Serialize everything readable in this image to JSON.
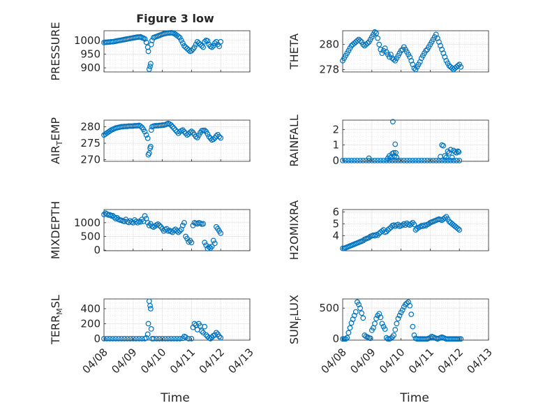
{
  "figure": {
    "title": "Figure 3 low",
    "xlabel_left": "Time",
    "xlabel_right": "Time",
    "x_ticks": [
      "04/08",
      "04/09",
      "04/10",
      "04/11",
      "04/12",
      "04/13"
    ],
    "marker_color": "#0072BD",
    "grid_color": "#e6e6e6",
    "axis_color": "#262626"
  },
  "chart_data": [
    {
      "type": "scatter",
      "ylabel": "PRESSURE",
      "xlim": [
        0,
        5
      ],
      "ylim": [
        885,
        1035
      ],
      "yticks": [
        900,
        950,
        1000
      ],
      "x": [
        0.0,
        0.05,
        0.1,
        0.15,
        0.2,
        0.25,
        0.3,
        0.35,
        0.4,
        0.45,
        0.5,
        0.55,
        0.6,
        0.65,
        0.7,
        0.75,
        0.8,
        0.85,
        0.9,
        0.95,
        1.0,
        1.05,
        1.1,
        1.15,
        1.2,
        1.25,
        1.3,
        1.35,
        1.4,
        1.45,
        1.5,
        1.52,
        1.55,
        1.58,
        1.6,
        1.62,
        1.65,
        1.7,
        1.75,
        1.8,
        1.85,
        1.9,
        1.95,
        2.0,
        2.05,
        2.1,
        2.15,
        2.2,
        2.25,
        2.3,
        2.35,
        2.4,
        2.45,
        2.5,
        2.55,
        2.6,
        2.65,
        2.7,
        2.75,
        2.8,
        2.85,
        2.9,
        2.95,
        3.0,
        3.05,
        3.1,
        3.15,
        3.2,
        3.25,
        3.3,
        3.35,
        3.4,
        3.45,
        3.5,
        3.55,
        3.6,
        3.65,
        3.7,
        3.75,
        3.8,
        3.85,
        3.9,
        3.95,
        4.0
      ],
      "y": [
        992,
        993,
        993,
        994,
        994,
        995,
        995,
        996,
        997,
        998,
        999,
        1000,
        1001,
        1002,
        1003,
        1004,
        1005,
        1006,
        1007,
        1008,
        1009,
        1010,
        1011,
        1012,
        1012,
        1013,
        1010,
        1008,
        1005,
        993,
        975,
        960,
        895,
        905,
        915,
        985,
        1000,
        1010,
        1012,
        1014,
        1016,
        1018,
        1020,
        1022,
        1024,
        1025,
        1026,
        1027,
        1027,
        1028,
        1027,
        1025,
        1022,
        1018,
        1014,
        1010,
        1000,
        990,
        980,
        975,
        970,
        965,
        960,
        962,
        968,
        975,
        985,
        995,
        990,
        985,
        980,
        975,
        995,
        1000,
        998,
        985,
        978,
        975,
        980,
        990,
        995,
        985,
        978,
        995
      ]
    },
    {
      "type": "scatter",
      "ylabel": "THETA",
      "xlim": [
        0,
        5
      ],
      "ylim": [
        277.8,
        281.1
      ],
      "yticks": [
        278,
        280
      ],
      "x": [
        0.0,
        0.05,
        0.1,
        0.15,
        0.2,
        0.25,
        0.3,
        0.35,
        0.4,
        0.45,
        0.5,
        0.55,
        0.6,
        0.65,
        0.7,
        0.75,
        0.8,
        0.85,
        0.9,
        0.95,
        1.0,
        1.05,
        1.1,
        1.15,
        1.2,
        1.25,
        1.3,
        1.35,
        1.4,
        1.45,
        1.5,
        1.55,
        1.6,
        1.65,
        1.7,
        1.75,
        1.8,
        1.85,
        1.9,
        1.95,
        2.0,
        2.05,
        2.1,
        2.15,
        2.2,
        2.25,
        2.3,
        2.35,
        2.4,
        2.45,
        2.5,
        2.55,
        2.6,
        2.65,
        2.7,
        2.75,
        2.8,
        2.85,
        2.9,
        2.95,
        3.0,
        3.05,
        3.1,
        3.15,
        3.2,
        3.25,
        3.3,
        3.35,
        3.4,
        3.45,
        3.5,
        3.55,
        3.6,
        3.65,
        3.7,
        3.75,
        3.8,
        3.85,
        3.9,
        3.95,
        4.0,
        4.05
      ],
      "y": [
        278.7,
        278.9,
        279.1,
        279.3,
        279.5,
        279.7,
        279.9,
        280.0,
        280.1,
        280.2,
        280.3,
        280.4,
        280.3,
        280.2,
        280.0,
        279.9,
        280.0,
        280.1,
        280.2,
        280.4,
        280.6,
        280.8,
        281.0,
        280.9,
        280.5,
        280.0,
        279.6,
        279.3,
        279.5,
        279.7,
        279.4,
        279.2,
        279.0,
        279.2,
        278.9,
        278.8,
        278.7,
        278.9,
        279.1,
        279.3,
        279.5,
        279.6,
        279.8,
        279.6,
        279.4,
        279.2,
        279.0,
        278.7,
        278.4,
        278.1,
        278.0,
        278.2,
        278.4,
        278.6,
        278.9,
        279.1,
        279.3,
        279.5,
        279.6,
        279.8,
        280.0,
        280.2,
        280.4,
        280.6,
        280.8,
        280.5,
        280.2,
        279.9,
        279.6,
        279.3,
        279.0,
        278.7,
        278.5,
        278.3,
        278.2,
        278.1,
        278.0,
        278.1,
        278.2,
        278.3,
        278.4,
        278.2
      ]
    },
    {
      "type": "scatter",
      "ylabel": "AIR_TEMP",
      "xlim": [
        0,
        5
      ],
      "ylim": [
        269.5,
        282
      ],
      "yticks": [
        270,
        275,
        280
      ],
      "x": [
        0.0,
        0.05,
        0.1,
        0.15,
        0.2,
        0.25,
        0.3,
        0.35,
        0.4,
        0.45,
        0.5,
        0.55,
        0.6,
        0.65,
        0.7,
        0.75,
        0.8,
        0.85,
        0.9,
        0.95,
        1.0,
        1.05,
        1.1,
        1.15,
        1.2,
        1.25,
        1.3,
        1.35,
        1.4,
        1.45,
        1.5,
        1.52,
        1.55,
        1.58,
        1.6,
        1.62,
        1.65,
        1.7,
        1.75,
        1.8,
        1.85,
        1.9,
        1.95,
        2.0,
        2.05,
        2.1,
        2.15,
        2.2,
        2.25,
        2.3,
        2.35,
        2.4,
        2.45,
        2.5,
        2.55,
        2.6,
        2.65,
        2.7,
        2.75,
        2.8,
        2.85,
        2.9,
        2.95,
        3.0,
        3.05,
        3.1,
        3.15,
        3.2,
        3.25,
        3.3,
        3.35,
        3.4,
        3.45,
        3.5,
        3.55,
        3.6,
        3.65,
        3.7,
        3.75,
        3.8,
        3.85,
        3.9,
        3.95,
        4.0
      ],
      "y": [
        277.5,
        277.8,
        278.1,
        278.4,
        278.7,
        279.0,
        279.2,
        279.4,
        279.6,
        279.7,
        279.8,
        279.9,
        280.0,
        280.0,
        280.1,
        280.1,
        280.1,
        280.2,
        280.2,
        280.2,
        280.2,
        280.3,
        280.3,
        280.3,
        280.4,
        280.2,
        279.8,
        279.2,
        278.5,
        277.5,
        276.5,
        271.5,
        272.0,
        273.5,
        274.0,
        279.0,
        280.0,
        280.2,
        280.3,
        280.3,
        280.3,
        280.4,
        280.4,
        280.5,
        280.5,
        280.6,
        280.8,
        281.0,
        280.8,
        280.5,
        280.0,
        279.5,
        279.0,
        278.5,
        278.0,
        278.5,
        278.8,
        279.0,
        278.5,
        278.0,
        277.5,
        277.8,
        278.3,
        278.6,
        278.2,
        277.6,
        277.0,
        276.7,
        277.4,
        278.2,
        278.8,
        278.9,
        278.9,
        278.5,
        277.8,
        277.0,
        276.5,
        276.0,
        276.2,
        276.6,
        277.2,
        277.6,
        277.0,
        276.6
      ]
    },
    {
      "type": "scatter",
      "ylabel": "RAINFALL",
      "xlim": [
        0,
        5
      ],
      "ylim": [
        -0.05,
        2.6
      ],
      "yticks": [
        0,
        1,
        2
      ],
      "x": [
        0.0,
        0.1,
        0.2,
        0.3,
        0.4,
        0.5,
        0.6,
        0.7,
        0.8,
        0.9,
        1.0,
        1.1,
        1.2,
        1.3,
        1.4,
        1.5,
        1.6,
        1.7,
        1.8,
        1.9,
        2.0,
        2.1,
        2.2,
        2.3,
        2.4,
        2.5,
        2.6,
        2.7,
        2.8,
        2.9,
        3.0,
        3.1,
        3.2,
        3.3,
        3.4,
        3.5,
        3.6,
        3.7,
        3.8,
        3.9,
        4.0,
        0.9,
        1.55,
        1.6,
        1.65,
        1.7,
        1.72,
        1.75,
        1.78,
        1.8,
        1.82,
        1.85,
        3.35,
        3.4,
        3.45,
        3.5,
        3.55,
        3.6,
        3.65,
        3.7,
        3.75,
        3.8,
        3.85,
        3.9,
        3.95,
        3.98
      ],
      "y": [
        0,
        0,
        0,
        0,
        0,
        0,
        0,
        0,
        0,
        0,
        0,
        0,
        0,
        0,
        0,
        0,
        0,
        0,
        0,
        0,
        0,
        0,
        0,
        0,
        0,
        0,
        0,
        0,
        0,
        0,
        0,
        0,
        0,
        0,
        0,
        0,
        0,
        0,
        0,
        0,
        0,
        0.15,
        0.15,
        0.3,
        0.2,
        0.45,
        2.5,
        0.5,
        0.3,
        1.05,
        0.5,
        0.2,
        0.25,
        1.0,
        0.95,
        0.3,
        0.2,
        0.6,
        0.5,
        0.7,
        0.2,
        0.65,
        0.55,
        0.5,
        0.6,
        0.55
      ]
    },
    {
      "type": "scatter",
      "ylabel": "MIXDEPTH",
      "xlim": [
        0,
        5
      ],
      "ylim": [
        -20,
        1480
      ],
      "yticks": [
        0,
        500,
        1000
      ],
      "x": [
        0.0,
        0.05,
        0.1,
        0.15,
        0.2,
        0.25,
        0.3,
        0.35,
        0.4,
        0.45,
        0.5,
        0.55,
        0.6,
        0.65,
        0.7,
        0.75,
        0.8,
        0.85,
        0.9,
        0.95,
        1.0,
        1.05,
        1.1,
        1.15,
        1.2,
        1.25,
        1.3,
        1.35,
        1.4,
        1.45,
        1.5,
        1.55,
        1.6,
        1.65,
        1.7,
        1.75,
        1.8,
        1.85,
        1.9,
        1.95,
        2.0,
        2.05,
        2.1,
        2.15,
        2.2,
        2.25,
        2.3,
        2.35,
        2.4,
        2.45,
        2.5,
        2.55,
        2.6,
        2.65,
        2.7,
        2.75,
        2.8,
        2.85,
        2.9,
        2.95,
        3.0,
        3.05,
        3.1,
        3.15,
        3.2,
        3.25,
        3.3,
        3.35,
        3.4,
        3.45,
        3.5,
        3.55,
        3.6,
        3.65,
        3.7,
        3.75,
        3.8,
        3.85,
        3.9,
        3.95,
        4.0
      ],
      "y": [
        1300,
        1350,
        1320,
        1280,
        1290,
        1250,
        1260,
        1200,
        1150,
        1180,
        1120,
        1100,
        1090,
        1060,
        1050,
        1120,
        1040,
        1010,
        1070,
        1030,
        1000,
        1100,
        1040,
        1000,
        1050,
        1030,
        1120,
        1050,
        1250,
        1150,
        1000,
        900,
        960,
        870,
        840,
        880,
        920,
        950,
        900,
        850,
        780,
        700,
        750,
        780,
        700,
        720,
        680,
        650,
        720,
        760,
        700,
        650,
        700,
        760,
        900,
        1000,
        500,
        420,
        300,
        350,
        280,
        900,
        1000,
        980,
        960,
        1000,
        980,
        950,
        960,
        280,
        180,
        60,
        120,
        80,
        140,
        350,
        250,
        850,
        780,
        700,
        620
      ]
    },
    {
      "type": "scatter",
      "ylabel": "H2OMIXRA",
      "xlim": [
        0,
        5
      ],
      "ylim": [
        2.75,
        6.2
      ],
      "yticks": [
        4,
        5,
        6
      ],
      "x": [
        0.0,
        0.05,
        0.1,
        0.15,
        0.2,
        0.25,
        0.3,
        0.35,
        0.4,
        0.45,
        0.5,
        0.55,
        0.6,
        0.65,
        0.7,
        0.75,
        0.8,
        0.85,
        0.9,
        0.95,
        1.0,
        1.05,
        1.1,
        1.15,
        1.2,
        1.25,
        1.3,
        1.35,
        1.4,
        1.45,
        1.5,
        1.55,
        1.6,
        1.65,
        1.7,
        1.75,
        1.8,
        1.85,
        1.9,
        1.95,
        2.0,
        2.05,
        2.1,
        2.15,
        2.2,
        2.25,
        2.3,
        2.35,
        2.4,
        2.45,
        2.5,
        2.55,
        2.6,
        2.65,
        2.7,
        2.75,
        2.8,
        2.85,
        2.9,
        2.95,
        3.0,
        3.05,
        3.1,
        3.15,
        3.2,
        3.25,
        3.3,
        3.35,
        3.4,
        3.45,
        3.5,
        3.55,
        3.6,
        3.65,
        3.7,
        3.75,
        3.8,
        3.85,
        3.9,
        3.95,
        4.0
      ],
      "y": [
        2.95,
        2.95,
        3.0,
        3.05,
        3.1,
        3.15,
        3.2,
        3.25,
        3.3,
        3.35,
        3.4,
        3.45,
        3.5,
        3.55,
        3.6,
        3.7,
        3.75,
        3.8,
        3.85,
        3.95,
        4.0,
        4.05,
        4.0,
        4.1,
        4.05,
        4.2,
        4.3,
        4.4,
        4.5,
        4.3,
        4.35,
        4.5,
        4.6,
        4.7,
        4.85,
        4.9,
        4.8,
        4.9,
        4.95,
        4.8,
        4.85,
        4.9,
        5.0,
        4.9,
        5.05,
        4.95,
        4.9,
        5.0,
        5.1,
        4.95,
        4.5,
        4.6,
        4.7,
        4.75,
        4.85,
        4.8,
        4.9,
        4.85,
        4.95,
        5.0,
        5.1,
        5.15,
        5.2,
        5.25,
        5.3,
        5.35,
        5.4,
        5.35,
        5.3,
        5.4,
        5.5,
        5.6,
        5.4,
        5.2,
        5.1,
        5.0,
        4.9,
        4.8,
        4.7,
        4.6,
        4.5
      ]
    },
    {
      "type": "scatter",
      "ylabel": "TERR_MSL",
      "xlim": [
        0,
        5
      ],
      "ylim": [
        -20,
        530
      ],
      "yticks": [
        0,
        200,
        400
      ],
      "x": [
        0.0,
        0.1,
        0.2,
        0.3,
        0.4,
        0.5,
        0.6,
        0.7,
        0.8,
        0.9,
        1.0,
        1.1,
        1.2,
        1.3,
        1.4,
        1.45,
        1.5,
        1.52,
        1.55,
        1.58,
        1.6,
        1.62,
        1.65,
        1.7,
        1.8,
        1.9,
        2.0,
        2.1,
        2.2,
        2.3,
        2.4,
        2.5,
        2.6,
        2.7,
        2.75,
        2.8,
        2.9,
        3.0,
        3.05,
        3.1,
        3.15,
        3.2,
        3.25,
        3.3,
        3.35,
        3.4,
        3.45,
        3.5,
        3.55,
        3.6,
        3.65,
        3.7,
        3.75,
        3.8,
        3.85,
        3.9,
        3.95,
        4.0
      ],
      "y": [
        0,
        0,
        0,
        0,
        0,
        0,
        0,
        0,
        0,
        0,
        0,
        0,
        0,
        0,
        0,
        10,
        60,
        200,
        500,
        440,
        400,
        130,
        0,
        0,
        0,
        0,
        0,
        0,
        0,
        0,
        0,
        0,
        0,
        5,
        30,
        20,
        0,
        0,
        150,
        200,
        180,
        120,
        200,
        170,
        100,
        80,
        160,
        50,
        30,
        10,
        0,
        20,
        40,
        50,
        80,
        60,
        30,
        10
      ]
    },
    {
      "type": "scatter",
      "ylabel": "SUN_FLUX",
      "xlim": [
        0,
        5
      ],
      "ylim": [
        -20,
        650
      ],
      "yticks": [
        0,
        500
      ],
      "x": [
        0.0,
        0.05,
        0.1,
        0.15,
        0.2,
        0.25,
        0.3,
        0.35,
        0.4,
        0.45,
        0.5,
        0.55,
        0.6,
        0.65,
        0.7,
        0.75,
        0.8,
        0.85,
        0.9,
        0.95,
        1.0,
        1.05,
        1.1,
        1.15,
        1.2,
        1.25,
        1.3,
        1.35,
        1.4,
        1.45,
        1.5,
        1.55,
        1.6,
        1.65,
        1.7,
        1.75,
        1.8,
        1.85,
        1.9,
        1.95,
        2.0,
        2.05,
        2.1,
        2.15,
        2.2,
        2.25,
        2.3,
        2.35,
        2.4,
        2.45,
        2.5,
        2.55,
        2.6,
        2.65,
        2.7,
        2.75,
        2.8,
        2.85,
        2.9,
        2.95,
        3.0,
        3.05,
        3.1,
        3.15,
        3.2,
        3.25,
        3.3,
        3.35,
        3.4,
        3.45,
        3.5,
        3.55,
        3.6,
        3.65,
        3.7,
        3.75,
        3.8,
        3.85,
        3.9,
        3.95,
        4.0,
        4.05
      ],
      "y": [
        0,
        0,
        0,
        20,
        100,
        180,
        260,
        320,
        380,
        440,
        600,
        560,
        500,
        420,
        340,
        60,
        40,
        30,
        20,
        10,
        140,
        180,
        250,
        330,
        380,
        410,
        350,
        250,
        200,
        160,
        20,
        0,
        0,
        10,
        30,
        60,
        150,
        250,
        330,
        380,
        430,
        470,
        520,
        560,
        580,
        600,
        540,
        400,
        200,
        60,
        10,
        0,
        0,
        0,
        0,
        0,
        0,
        0,
        0,
        10,
        20,
        40,
        30,
        20,
        10,
        0,
        10,
        20,
        30,
        20,
        10,
        0,
        0,
        0,
        0,
        0,
        0,
        0,
        0,
        0,
        0,
        0
      ]
    }
  ]
}
